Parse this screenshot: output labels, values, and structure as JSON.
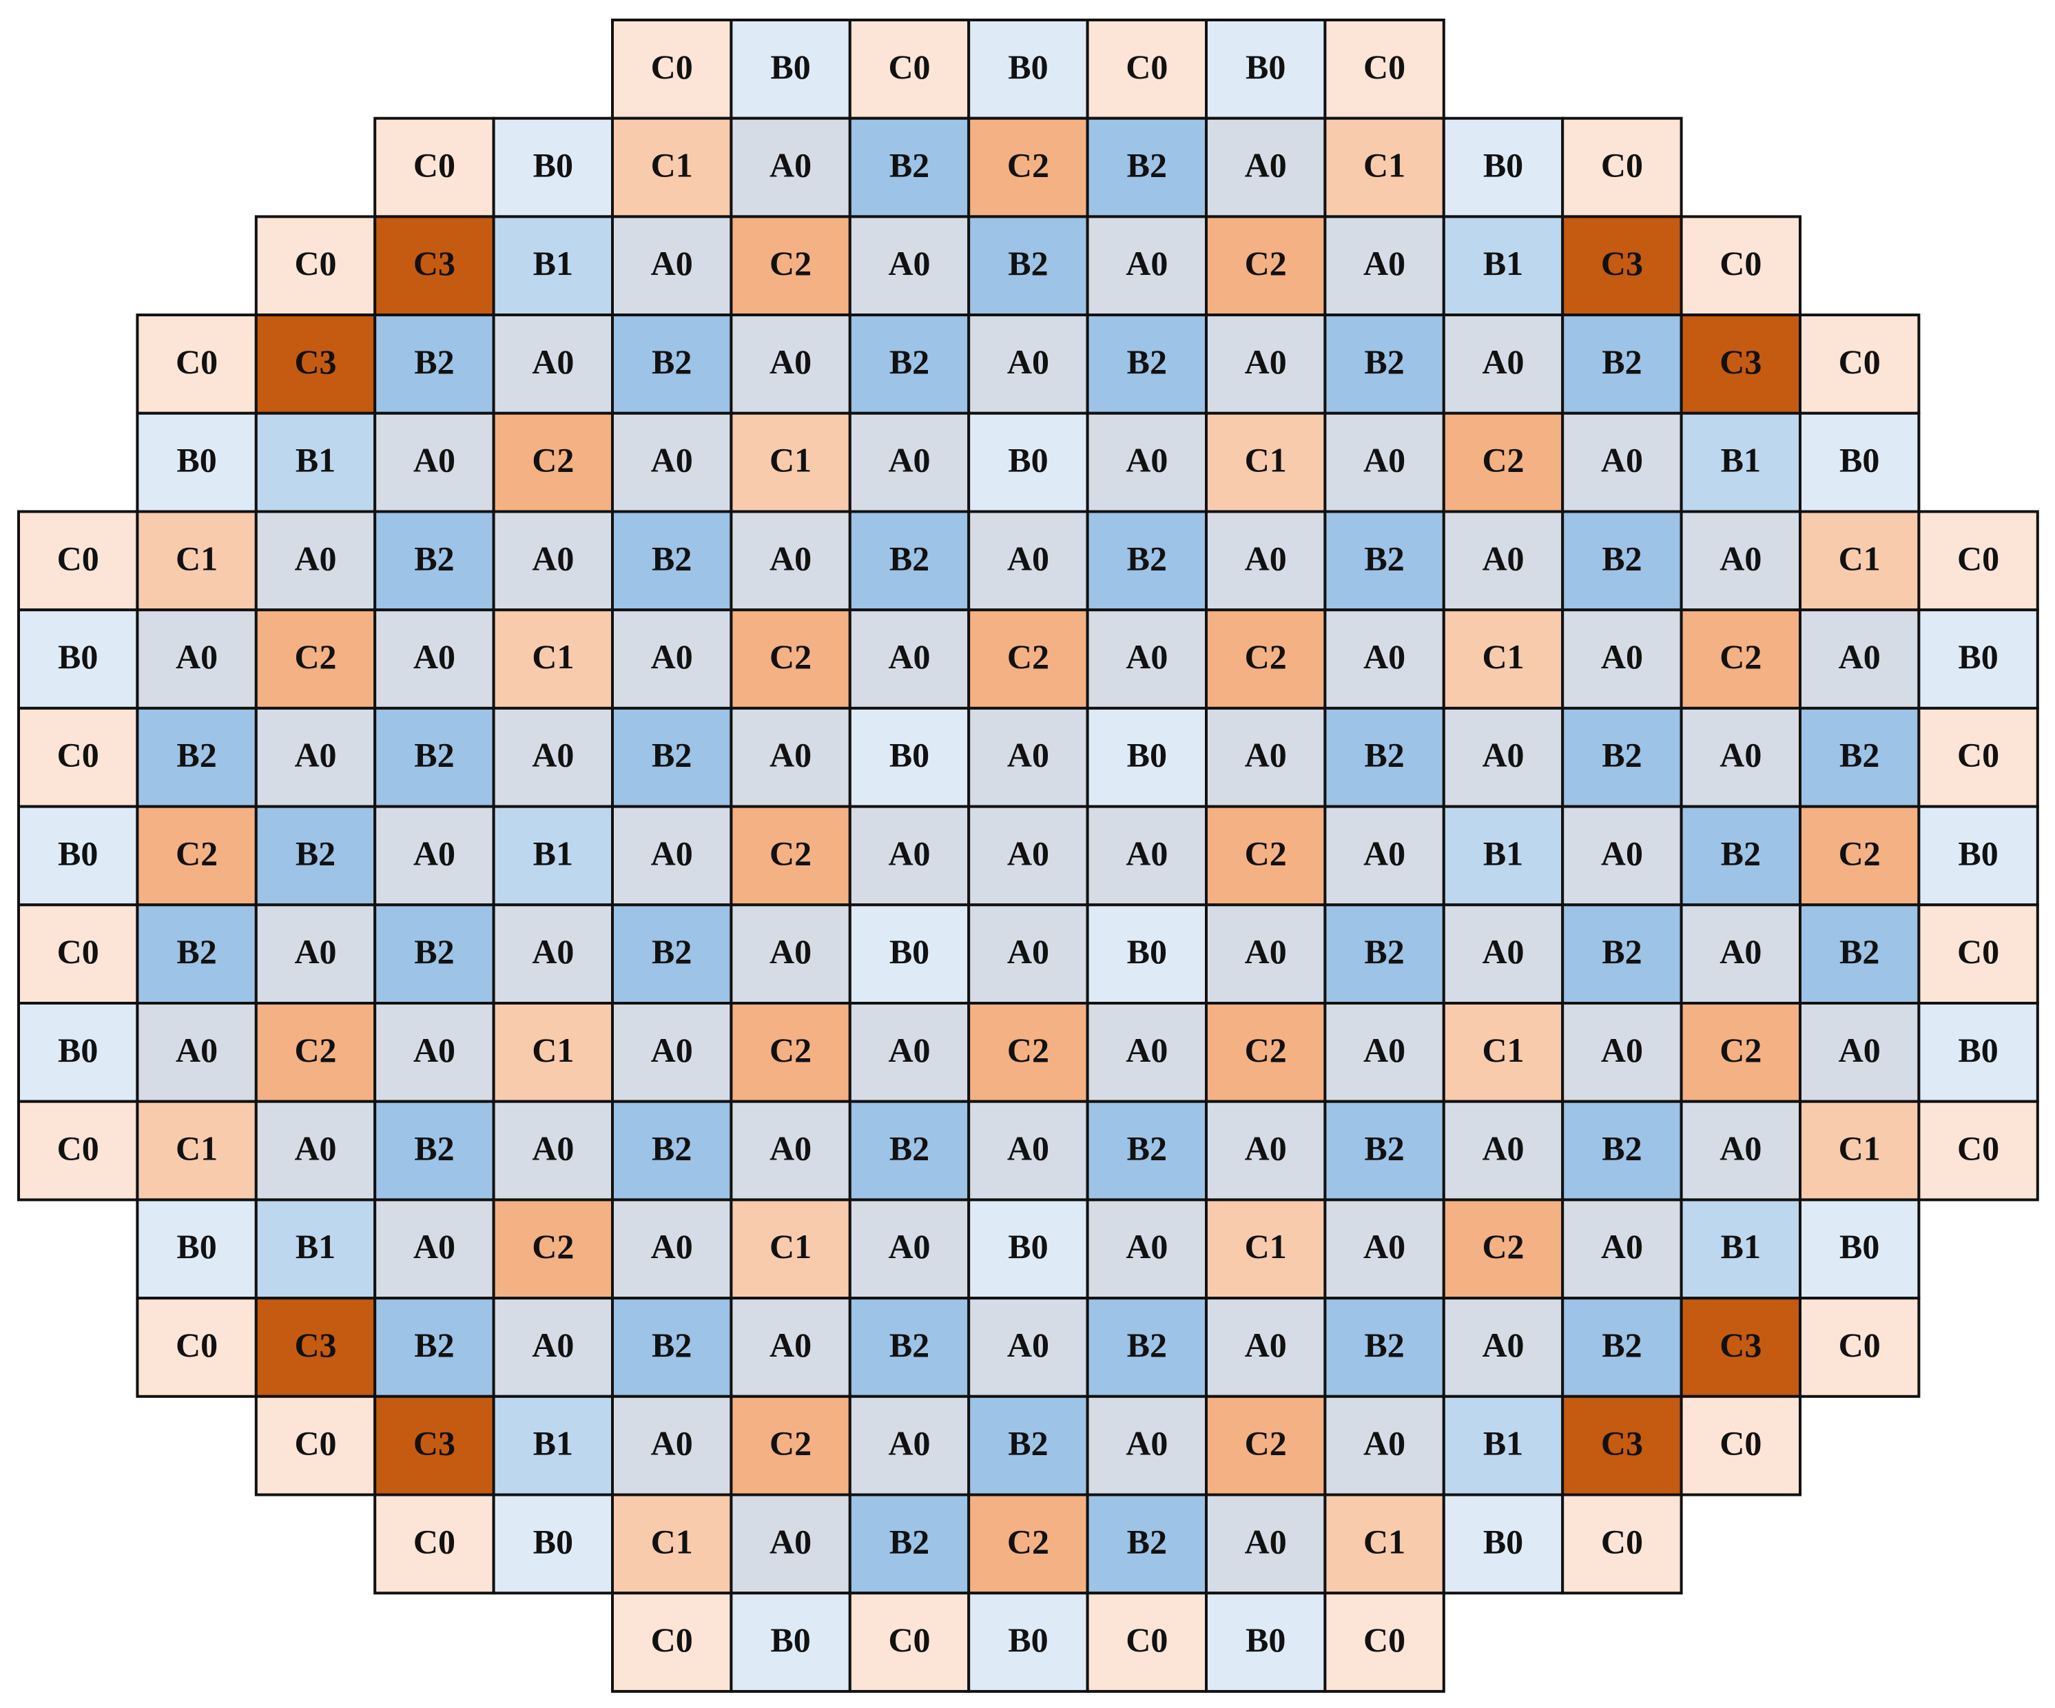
{
  "colors": {
    "A0": "#d6dce5",
    "B0": "#deebf7",
    "B1": "#bdd7ee",
    "B2": "#9dc3e6",
    "C0": "#fce4d6",
    "C1": "#f8cbad",
    "C2": "#f4b183",
    "C3": "#c55a11"
  },
  "rows": [
    [
      null,
      null,
      null,
      null,
      null,
      "C0",
      "B0",
      "C0",
      "B0",
      "C0",
      "B0",
      "C0",
      null,
      null,
      null,
      null,
      null
    ],
    [
      null,
      null,
      null,
      "C0",
      "B0",
      "C1",
      "A0",
      "B2",
      "C2",
      "B2",
      "A0",
      "C1",
      "B0",
      "C0",
      null,
      null,
      null
    ],
    [
      null,
      null,
      "C0",
      "C3",
      "B1",
      "A0",
      "C2",
      "A0",
      "B2",
      "A0",
      "C2",
      "A0",
      "B1",
      "C3",
      "C0",
      null,
      null
    ],
    [
      null,
      "C0",
      "C3",
      "B2",
      "A0",
      "B2",
      "A0",
      "B2",
      "A0",
      "B2",
      "A0",
      "B2",
      "A0",
      "B2",
      "C3",
      "C0",
      null
    ],
    [
      null,
      "B0",
      "B1",
      "A0",
      "C2",
      "A0",
      "C1",
      "A0",
      "B0",
      "A0",
      "C1",
      "A0",
      "C2",
      "A0",
      "B1",
      "B0",
      null
    ],
    [
      "C0",
      "C1",
      "A0",
      "B2",
      "A0",
      "B2",
      "A0",
      "B2",
      "A0",
      "B2",
      "A0",
      "B2",
      "A0",
      "B2",
      "A0",
      "C1",
      "C0"
    ],
    [
      "B0",
      "A0",
      "C2",
      "A0",
      "C1",
      "A0",
      "C2",
      "A0",
      "C2",
      "A0",
      "C2",
      "A0",
      "C1",
      "A0",
      "C2",
      "A0",
      "B0"
    ],
    [
      "C0",
      "B2",
      "A0",
      "B2",
      "A0",
      "B2",
      "A0",
      "B0",
      "A0",
      "B0",
      "A0",
      "B2",
      "A0",
      "B2",
      "A0",
      "B2",
      "C0"
    ],
    [
      "B0",
      "C2",
      "B2",
      "A0",
      "B1",
      "A0",
      "C2",
      "A0",
      "A0",
      "A0",
      "C2",
      "A0",
      "B1",
      "A0",
      "B2",
      "C2",
      "B0"
    ],
    [
      "C0",
      "B2",
      "A0",
      "B2",
      "A0",
      "B2",
      "A0",
      "B0",
      "A0",
      "B0",
      "A0",
      "B2",
      "A0",
      "B2",
      "A0",
      "B2",
      "C0"
    ],
    [
      "B0",
      "A0",
      "C2",
      "A0",
      "C1",
      "A0",
      "C2",
      "A0",
      "C2",
      "A0",
      "C2",
      "A0",
      "C1",
      "A0",
      "C2",
      "A0",
      "B0"
    ],
    [
      "C0",
      "C1",
      "A0",
      "B2",
      "A0",
      "B2",
      "A0",
      "B2",
      "A0",
      "B2",
      "A0",
      "B2",
      "A0",
      "B2",
      "A0",
      "C1",
      "C0"
    ],
    [
      null,
      "B0",
      "B1",
      "A0",
      "C2",
      "A0",
      "C1",
      "A0",
      "B0",
      "A0",
      "C1",
      "A0",
      "C2",
      "A0",
      "B1",
      "B0",
      null
    ],
    [
      null,
      "C0",
      "C3",
      "B2",
      "A0",
      "B2",
      "A0",
      "B2",
      "A0",
      "B2",
      "A0",
      "B2",
      "A0",
      "B2",
      "C3",
      "C0",
      null
    ],
    [
      null,
      null,
      "C0",
      "C3",
      "B1",
      "A0",
      "C2",
      "A0",
      "B2",
      "A0",
      "C2",
      "A0",
      "B1",
      "C3",
      "C0",
      null,
      null
    ],
    [
      null,
      null,
      null,
      "C0",
      "B0",
      "C1",
      "A0",
      "B2",
      "C2",
      "B2",
      "A0",
      "C1",
      "B0",
      "C0",
      null,
      null,
      null
    ],
    [
      null,
      null,
      null,
      null,
      null,
      "C0",
      "B0",
      "C0",
      "B0",
      "C0",
      "B0",
      "C0",
      null,
      null,
      null,
      null,
      null
    ]
  ]
}
